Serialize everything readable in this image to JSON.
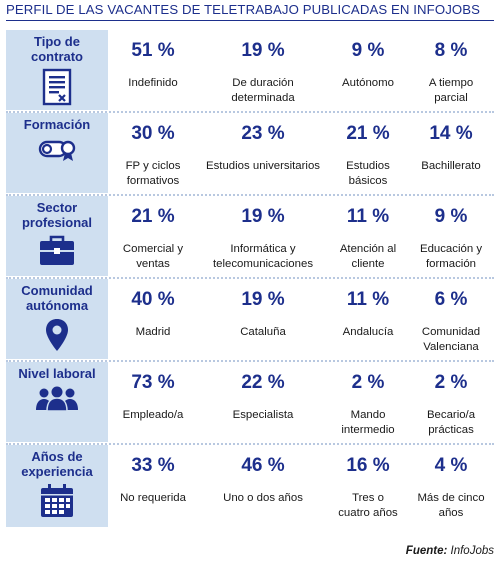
{
  "title": "PERFIL DE LAS VACANTES DE TELETRABAJO PUBLICADAS EN INFOJOBS",
  "source_label": "Fuente:",
  "source_value": " InfoJobs",
  "colors": {
    "accent": "#1d2f8c",
    "label_bg": "#cfdff0"
  },
  "rows": [
    {
      "label_lines": [
        "Tipo de",
        "contrato"
      ],
      "icon": "contract-document-icon",
      "items": [
        {
          "pct": "51 %",
          "desc_lines": [
            "Indefinido"
          ]
        },
        {
          "pct": "19 %",
          "desc_lines": [
            "De duración",
            "determinada"
          ]
        },
        {
          "pct": "9 %",
          "desc_lines": [
            "Autónomo"
          ]
        },
        {
          "pct": "8 %",
          "desc_lines": [
            "A tiempo",
            "parcial"
          ]
        }
      ]
    },
    {
      "label_lines": [
        "Formación"
      ],
      "icon": "diploma-icon",
      "items": [
        {
          "pct": "30 %",
          "desc_lines": [
            "FP y ciclos",
            "formativos"
          ]
        },
        {
          "pct": "23 %",
          "desc_lines": [
            "Estudios universitarios"
          ]
        },
        {
          "pct": "21 %",
          "desc_lines": [
            "Estudios",
            "básicos"
          ]
        },
        {
          "pct": "14 %",
          "desc_lines": [
            "Bachillerato"
          ]
        }
      ]
    },
    {
      "label_lines": [
        "Sector",
        "profesional"
      ],
      "icon": "briefcase-icon",
      "items": [
        {
          "pct": "21 %",
          "desc_lines": [
            "Comercial y",
            "ventas"
          ]
        },
        {
          "pct": "19 %",
          "desc_lines": [
            "Informática y",
            "telecomunicaciones"
          ]
        },
        {
          "pct": "11 %",
          "desc_lines": [
            "Atención al",
            "cliente"
          ]
        },
        {
          "pct": "9 %",
          "desc_lines": [
            "Educación y",
            "formación"
          ]
        }
      ]
    },
    {
      "label_lines": [
        "Comunidad",
        "autónoma"
      ],
      "icon": "location-pin-icon",
      "items": [
        {
          "pct": "40 %",
          "desc_lines": [
            "Madrid"
          ]
        },
        {
          "pct": "19 %",
          "desc_lines": [
            "Cataluña"
          ]
        },
        {
          "pct": "11 %",
          "desc_lines": [
            "Andalucía"
          ]
        },
        {
          "pct": "6 %",
          "desc_lines": [
            "Comunidad",
            "Valenciana"
          ]
        }
      ]
    },
    {
      "label_lines": [
        "Nivel laboral"
      ],
      "icon": "people-group-icon",
      "items": [
        {
          "pct": "73 %",
          "desc_lines": [
            "Empleado/a"
          ]
        },
        {
          "pct": "22 %",
          "desc_lines": [
            "Especialista"
          ]
        },
        {
          "pct": "2 %",
          "desc_lines": [
            "Mando",
            "intermedio"
          ]
        },
        {
          "pct": "2 %",
          "desc_lines": [
            "Becario/a",
            "prácticas"
          ]
        }
      ]
    },
    {
      "label_lines": [
        "Años de",
        "experiencia"
      ],
      "icon": "calendar-icon",
      "items": [
        {
          "pct": "33 %",
          "desc_lines": [
            "No requerida"
          ]
        },
        {
          "pct": "46 %",
          "desc_lines": [
            "Uno o dos años"
          ]
        },
        {
          "pct": "16 %",
          "desc_lines": [
            "Tres o",
            "cuatro años"
          ]
        },
        {
          "pct": "4 %",
          "desc_lines": [
            "Más de cinco",
            "años"
          ]
        }
      ]
    }
  ]
}
